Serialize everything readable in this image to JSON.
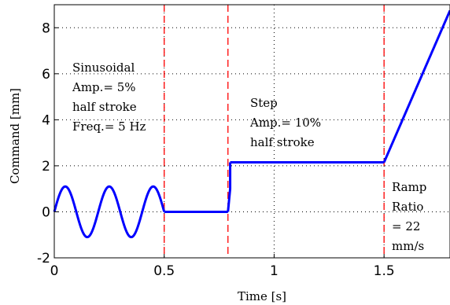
{
  "chart_data": {
    "type": "line",
    "xlabel": "Time [s]",
    "ylabel": "Command [mm]",
    "xlim": [
      0,
      1.8
    ],
    "ylim": [
      -2,
      9
    ],
    "x_ticks": [
      "0",
      "0.5",
      "1",
      "1.5"
    ],
    "x_tick_values": [
      0,
      0.5,
      1,
      1.5
    ],
    "y_ticks": [
      "-2",
      "0",
      "2",
      "4",
      "6",
      "8"
    ],
    "y_tick_values": [
      -2,
      0,
      2,
      4,
      6,
      8
    ],
    "grid": "dotted",
    "series": [
      {
        "color": "#0000ff",
        "segments": [
          {
            "kind": "sine",
            "x_start": 0,
            "x_end": 0.5,
            "amplitude": 1.1,
            "frequency_hz": 5
          },
          {
            "kind": "line",
            "x": [
              0.5,
              0.79
            ],
            "y": [
              0,
              0
            ]
          },
          {
            "kind": "line",
            "x": [
              0.79,
              0.8,
              0.8
            ],
            "y": [
              0,
              1.0,
              2.15
            ]
          },
          {
            "kind": "line",
            "x": [
              0.8,
              1.5
            ],
            "y": [
              2.15,
              2.15
            ]
          },
          {
            "kind": "line",
            "x": [
              1.5,
              1.8
            ],
            "y": [
              2.15,
              8.75
            ]
          }
        ]
      }
    ],
    "vertical_lines": {
      "x": [
        0.5,
        0.79,
        1.5
      ],
      "color": "#ff0000",
      "style": "dashed"
    },
    "annotations": [
      {
        "lines": [
          "Sinusoidal",
          "Amp.= 5%",
          "half stroke",
          "Freq.= 5 Hz"
        ]
      },
      {
        "lines": [
          "Step",
          "Amp.= 10%",
          "half stroke"
        ]
      },
      {
        "lines": [
          "Ramp",
          "Ratio",
          "= 22",
          "mm/s"
        ]
      }
    ]
  }
}
